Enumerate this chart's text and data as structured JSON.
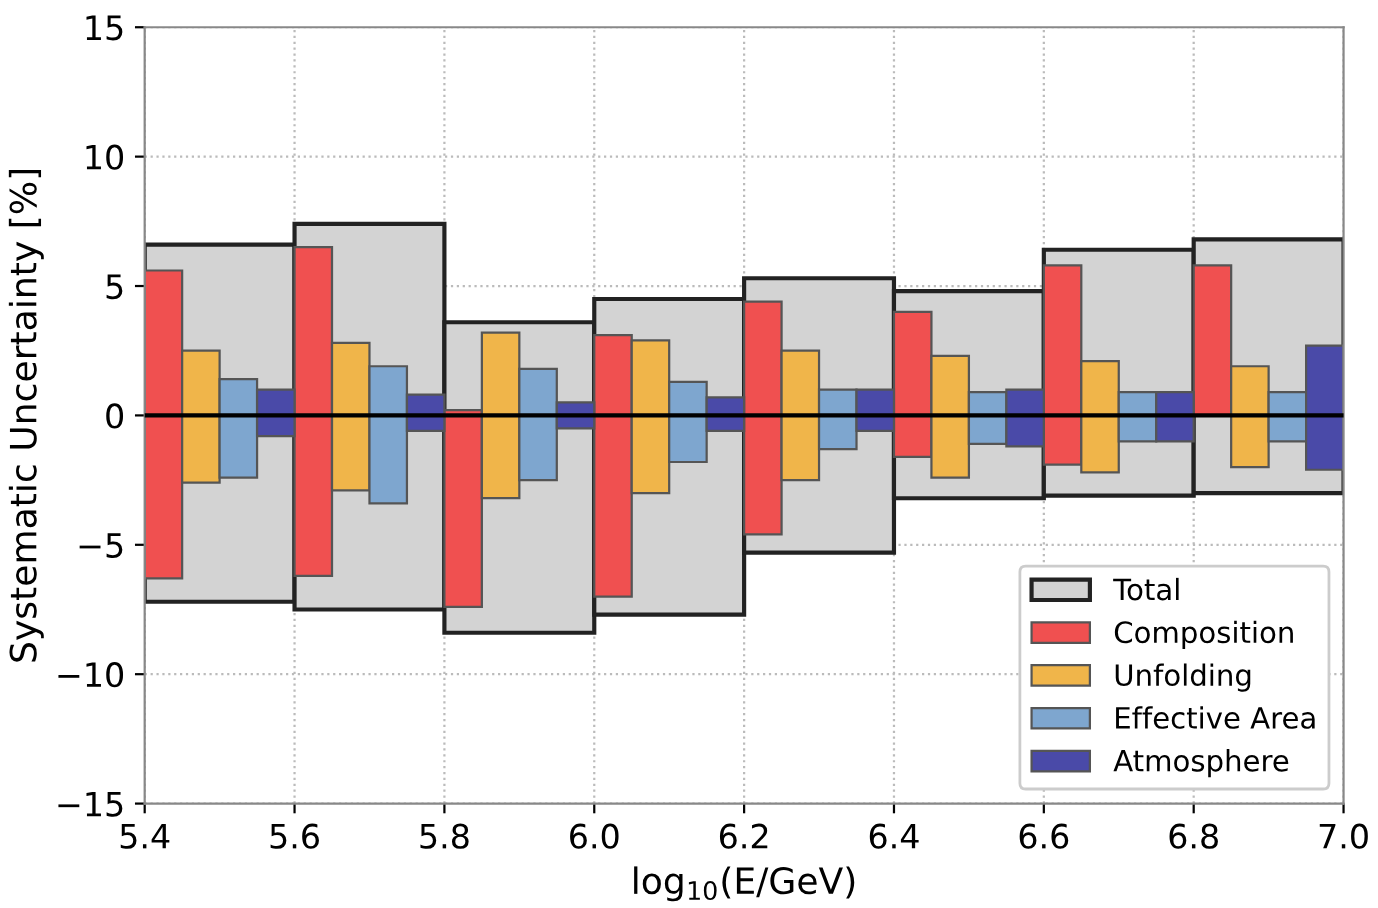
{
  "chart_data": {
    "type": "bar",
    "xlabel": "log$_{10}$(E/GeV)",
    "ylabel": "Systematic Uncertainty [%]",
    "x": [
      5.5,
      5.7,
      5.9,
      6.1,
      6.3,
      6.5,
      6.7,
      6.9
    ],
    "series": [
      {
        "name": "Total",
        "color": "#d3d3d3",
        "base": [
          -7.2,
          -7.5,
          -8.4,
          -7.7,
          -5.3,
          -3.2,
          -3.1,
          -3.0
        ],
        "values": [
          13.8,
          14.9,
          12.0,
          12.2,
          10.6,
          8.0,
          9.5,
          9.8
        ]
      },
      {
        "name": "Composition",
        "color": "#f05050",
        "base": [
          -6.3,
          -6.2,
          -7.4,
          -7.0,
          -4.6,
          -1.6,
          -1.9,
          0
        ],
        "values": [
          11.9,
          12.7,
          7.6,
          10.1,
          9.0,
          5.6,
          7.7,
          5.8
        ]
      },
      {
        "name": "Unfolding",
        "color": "#f0b54a",
        "base": [
          -2.6,
          -2.9,
          -3.2,
          -3.0,
          -2.5,
          -2.4,
          -2.2,
          -2.0
        ],
        "values": [
          5.1,
          5.7,
          6.4,
          5.9,
          5.0,
          4.7,
          4.3,
          3.9
        ]
      },
      {
        "name": "Effective Area",
        "color": "#7ea6cf",
        "base": [
          -2.4,
          -3.4,
          -2.5,
          -1.8,
          -1.3,
          -1.1,
          -1.0,
          -1.0
        ],
        "values": [
          3.8,
          5.3,
          4.3,
          3.1,
          2.3,
          2.0,
          1.9,
          1.9
        ]
      },
      {
        "name": "Atmosphere",
        "color": "#4a4aa8",
        "base": [
          -0.8,
          -0.6,
          -0.5,
          -0.6,
          -0.6,
          -1.2,
          -1.0,
          -2.1
        ],
        "values": [
          1.8,
          1.4,
          1.0,
          1.3,
          1.6,
          2.2,
          1.9,
          4.8
        ]
      }
    ],
    "xlim": [
      5.4,
      7.0
    ],
    "xticks": [
      5.4,
      5.6,
      5.8,
      {
        "value": 6,
        "label": "6.0"
      },
      6.2,
      6.4,
      6.6,
      6.8,
      {
        "value": 7,
        "label": "7.0"
      }
    ],
    "ylim": [
      -15,
      15
    ],
    "yticks": [
      {
        "value": -15,
        "label": "−15"
      },
      {
        "value": -10,
        "label": "−10"
      },
      {
        "value": -5,
        "label": "−5"
      },
      0,
      5,
      10,
      15
    ],
    "ref_lines": [
      {
        "axis": "y",
        "value": 0,
        "color": "#000000"
      }
    ],
    "grid": true,
    "legend": "bottom right"
  }
}
